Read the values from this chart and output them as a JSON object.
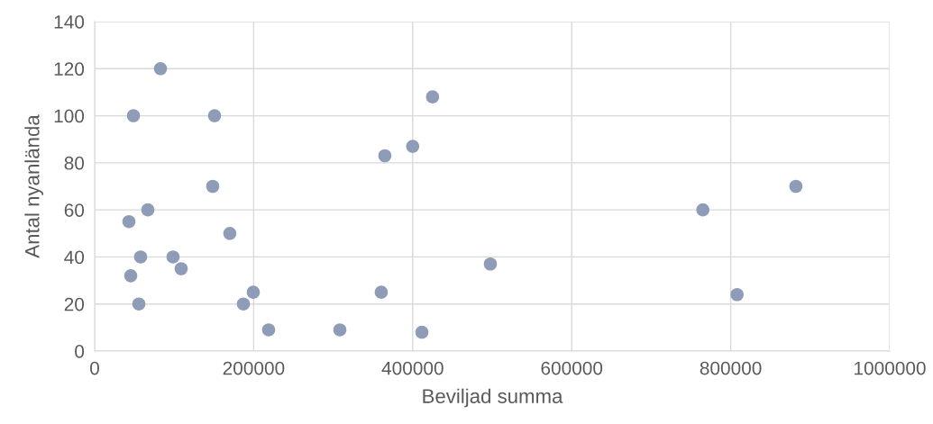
{
  "chart_data": {
    "type": "scatter",
    "xlabel": "Beviljad summa",
    "ylabel": "Antal nyanlända",
    "x": [
      82800,
      48800,
      150800,
      148500,
      66900,
      43100,
      170000,
      57800,
      98600,
      108800,
      45400,
      55600,
      199500,
      187100,
      218800,
      308400,
      360500,
      411600,
      365000,
      400000,
      425000,
      497700,
      765000,
      808000,
      882000
    ],
    "values": [
      120,
      100,
      100,
      70,
      60,
      55,
      50,
      40,
      40,
      35,
      32,
      20,
      25,
      20,
      9,
      9,
      25,
      8,
      83,
      87,
      108,
      37,
      60,
      24,
      70
    ],
    "color": "#8e9cb8",
    "xlim": [
      0,
      1000000
    ],
    "xticks": [
      0,
      200000,
      400000,
      600000,
      800000,
      1000000
    ],
    "ylim": [
      0,
      140
    ],
    "yticks": [
      0,
      20,
      40,
      60,
      80,
      100,
      120,
      140
    ],
    "grid": true,
    "marker": "circle"
  }
}
